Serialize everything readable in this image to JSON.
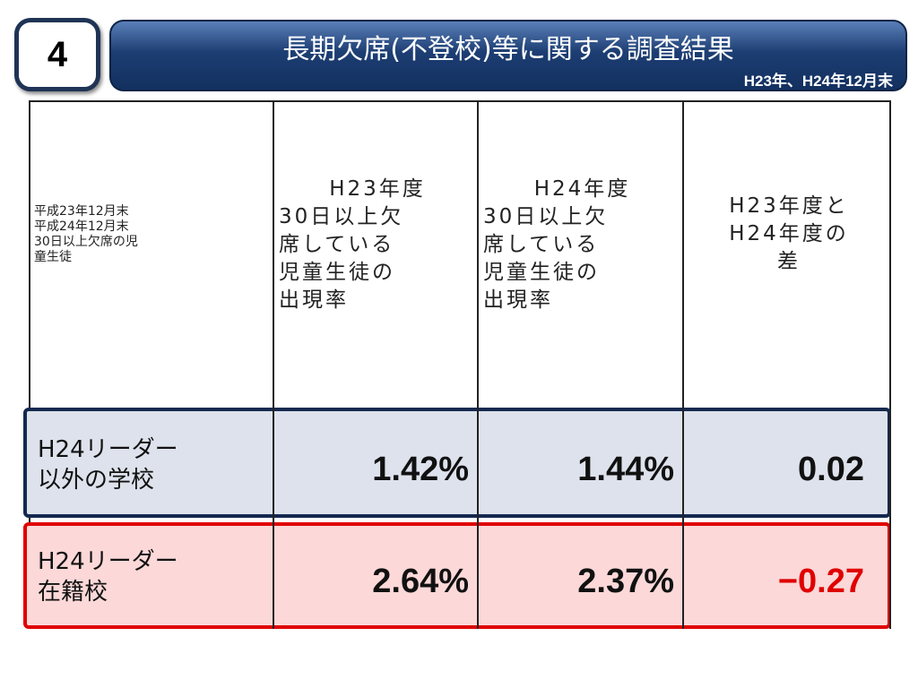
{
  "badge": "4",
  "header": {
    "title": "長期欠席(不登校)等に関する調査結果",
    "subtitle": "H23年、H24年12月末"
  },
  "table": {
    "header": [
      {
        "lines": [
          "平成23年12月末",
          "平成24年12月末",
          "30日以上欠席の児",
          "童生徒"
        ]
      },
      {
        "lines": [
          "H23年度",
          "30日以上欠",
          "席している",
          "児童生徒の",
          "出現率"
        ]
      },
      {
        "lines": [
          "H24年度",
          "30日以上欠",
          "席している",
          "児童生徒の",
          "出現率"
        ]
      },
      {
        "lines": [
          "H23年度と",
          "H24年度の",
          "差"
        ]
      }
    ],
    "rows": [
      {
        "label": [
          "H24リーダー",
          "以外の学校"
        ],
        "cells": [
          "1.42%",
          "1.44%",
          "0.02"
        ]
      },
      {
        "label": [
          "H24リーダー",
          "在籍校"
        ],
        "cells": [
          "2.64%",
          "2.37%",
          "−0.27"
        ]
      }
    ]
  }
}
